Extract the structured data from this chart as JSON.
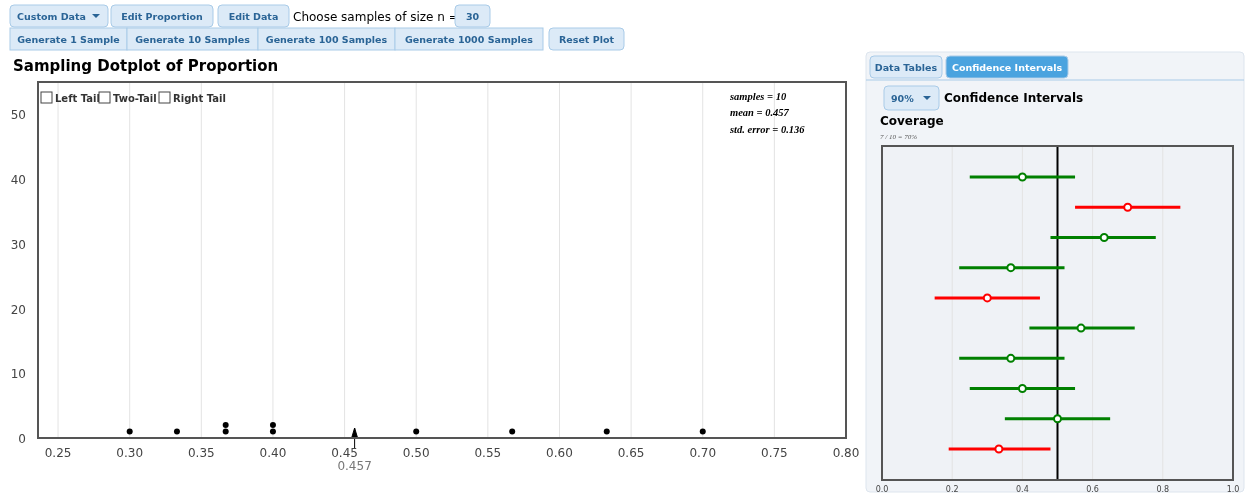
{
  "chart_data": [
    {
      "type": "scatter",
      "title": "Sampling Dotplot of Proportion",
      "x": [
        0.3,
        0.333,
        0.367,
        0.367,
        0.4,
        0.4,
        0.5,
        0.567,
        0.633,
        0.7
      ],
      "values": [
        1,
        1,
        1,
        2,
        1,
        2,
        1,
        1,
        1,
        1
      ],
      "color": "#000000",
      "marker": "circle",
      "grid": "x",
      "xlim": [
        0.236,
        0.8
      ],
      "ylim": [
        0,
        55
      ],
      "xticks": [
        {
          "value": 0.25,
          "label": "0.25"
        },
        {
          "value": 0.3,
          "label": "0.30"
        },
        {
          "value": 0.35,
          "label": "0.35"
        },
        {
          "value": 0.4,
          "label": "0.40"
        },
        {
          "value": 0.45,
          "label": "0.45"
        },
        {
          "value": 0.5,
          "label": "0.50"
        },
        {
          "value": 0.55,
          "label": "0.55"
        },
        {
          "value": 0.6,
          "label": "0.60"
        },
        {
          "value": 0.65,
          "label": "0.65"
        },
        {
          "value": 0.7,
          "label": "0.70"
        },
        {
          "value": 0.75,
          "label": "0.75"
        },
        {
          "value": 0.8,
          "label": "0.80"
        }
      ],
      "yticks": [
        0,
        10,
        20,
        30,
        40,
        50
      ],
      "ref_lines": [
        {
          "axis": "x",
          "value": 0.457,
          "label": "0.457"
        }
      ],
      "annotations": [
        "Custom Data",
        "Edit Proportion",
        "Edit Data",
        "Choose samples of size n =",
        "30",
        "Generate 1 Sample",
        "Generate 10 Samples",
        "Generate 100 Samples",
        "Generate 1000 Samples",
        "Reset Plot",
        "Left Tail",
        "Two-Tail",
        "Right Tail",
        "samples = 10",
        "mean = 0.457",
        "std. error = 0.136"
      ]
    },
    {
      "type": "scatter",
      "orientation": "horizontal",
      "title": "Coverage",
      "subtitle": "7 / 10 = 70%",
      "categories": [
        null,
        null,
        null,
        null,
        null,
        null,
        null,
        null,
        null,
        null
      ],
      "values": [
        0.4,
        0.7,
        0.633,
        0.367,
        0.3,
        0.567,
        0.367,
        0.4,
        0.5,
        0.333
      ],
      "errors": [
        [
          0.25,
          0.55
        ],
        [
          0.55,
          0.85
        ],
        [
          0.48,
          0.78
        ],
        [
          0.22,
          0.52
        ],
        [
          0.15,
          0.45
        ],
        [
          0.42,
          0.72
        ],
        [
          0.22,
          0.52
        ],
        [
          0.25,
          0.55
        ],
        [
          0.35,
          0.65
        ],
        [
          0.19,
          0.48
        ]
      ],
      "colors": [
        "#008000",
        "#ff0000",
        "#008000",
        "#008000",
        "#ff0000",
        "#008000",
        "#008000",
        "#008000",
        "#008000",
        "#ff0000"
      ],
      "marker": "circle",
      "grid": "x",
      "xlim": [
        0,
        1
      ],
      "xticks": [
        {
          "value": 0,
          "label": "0.0"
        },
        {
          "value": 0.2,
          "label": "0.2"
        },
        {
          "value": 0.4,
          "label": "0.4"
        },
        {
          "value": 0.6,
          "label": "0.6"
        },
        {
          "value": 0.8,
          "label": "0.8"
        },
        {
          "value": 1,
          "label": "1.0"
        }
      ],
      "ref_lines": [
        {
          "axis": "x",
          "value": 0.5,
          "color": "#000000"
        }
      ],
      "annotations": [
        "Data Tables",
        "Confidence Intervals",
        "90%",
        "Confidence Intervals"
      ]
    }
  ]
}
